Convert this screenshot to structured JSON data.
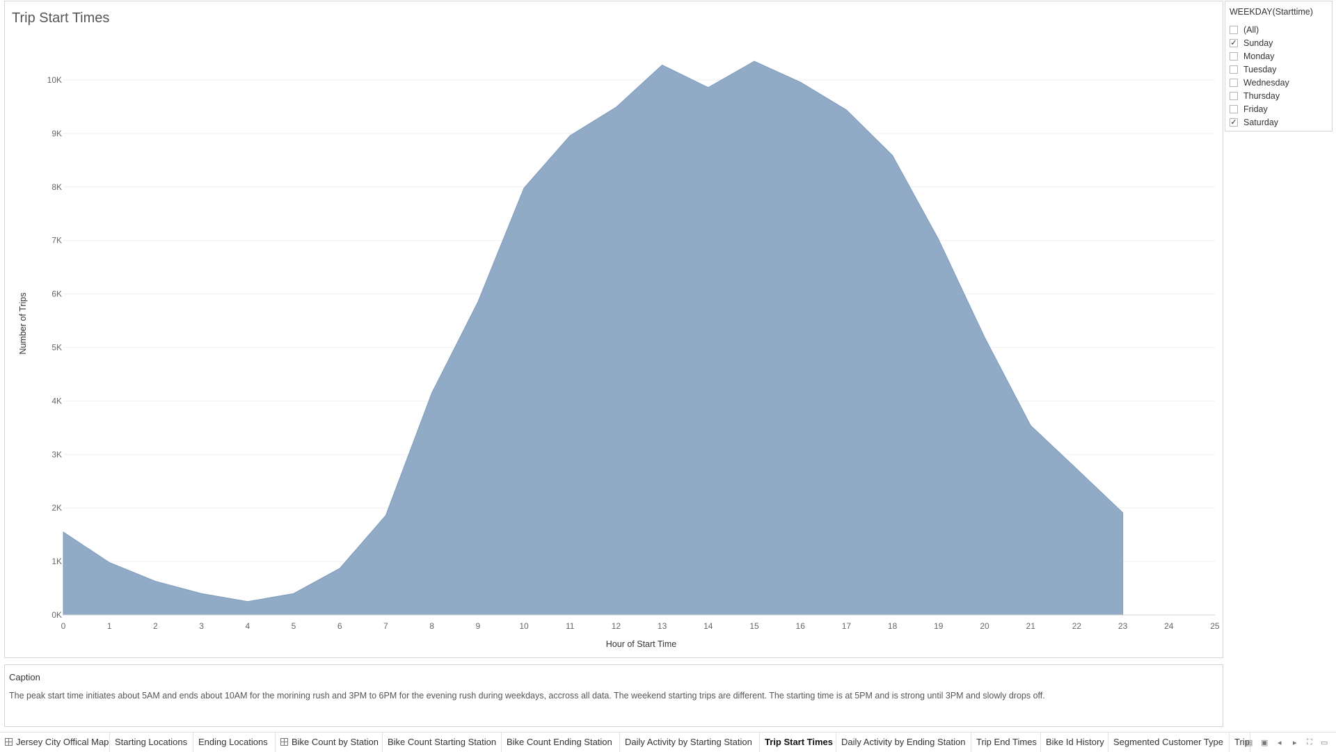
{
  "filter": {
    "title": "WEEKDAY(Starttime)",
    "options": [
      {
        "label": "(All)",
        "checked": false
      },
      {
        "label": "Sunday",
        "checked": true
      },
      {
        "label": "Monday",
        "checked": false
      },
      {
        "label": "Tuesday",
        "checked": false
      },
      {
        "label": "Wednesday",
        "checked": false
      },
      {
        "label": "Thursday",
        "checked": false
      },
      {
        "label": "Friday",
        "checked": false
      },
      {
        "label": "Saturday",
        "checked": true
      }
    ]
  },
  "caption": {
    "title": "Caption",
    "text": "The peak start time initiates about 5AM and ends about 10AM for the morining rush and 3PM to 6PM for the evening rush during weekdays, accross all data. The weekend starting trips are different. The starting time is at 5PM and is strong until 3PM and slowly drops off."
  },
  "tabs": [
    {
      "label": "Jersey City Offical Map",
      "icon": "dashboard-icon",
      "active": false
    },
    {
      "label": "Starting Locations",
      "icon": "",
      "active": false
    },
    {
      "label": "Ending Locations",
      "icon": "",
      "active": false
    },
    {
      "label": "Bike Count by Station",
      "icon": "dashboard-icon",
      "active": false
    },
    {
      "label": "Bike Count Starting Station",
      "icon": "",
      "active": false
    },
    {
      "label": "Bike Count Ending Station",
      "icon": "",
      "active": false
    },
    {
      "label": "Daily Activity by Starting Station",
      "icon": "",
      "active": false
    },
    {
      "label": "Trip Start Times",
      "icon": "",
      "active": true
    },
    {
      "label": "Daily Activity by Ending Station",
      "icon": "",
      "active": false
    },
    {
      "label": "Trip End Times",
      "icon": "",
      "active": false
    },
    {
      "label": "Bike Id History",
      "icon": "",
      "active": false
    },
    {
      "label": "Segmented Customer Type",
      "icon": "",
      "active": false
    },
    {
      "label": "Trip",
      "icon": "",
      "active": false
    }
  ],
  "nav_controls": [
    "grid-view-icon",
    "filmstrip-icon",
    "prev-icon",
    "next-icon",
    "fullscreen-icon",
    "present-icon"
  ],
  "chart_data": {
    "type": "area",
    "title": "Trip Start Times",
    "xlabel": "Hour of Start Time",
    "ylabel": "Number of Trips",
    "x": [
      0,
      1,
      2,
      3,
      4,
      5,
      6,
      7,
      8,
      9,
      10,
      11,
      12,
      13,
      14,
      15,
      16,
      17,
      18,
      19,
      20,
      21,
      22,
      23
    ],
    "y": [
      1550,
      980,
      630,
      400,
      250,
      400,
      870,
      1860,
      4150,
      5850,
      7980,
      8960,
      9490,
      10280,
      9860,
      10350,
      9960,
      9440,
      8590,
      7020,
      5190,
      3540,
      2730,
      1910
    ],
    "xlim": [
      0,
      25
    ],
    "ylim": [
      0,
      10000
    ],
    "xticks": [
      "0",
      "1",
      "2",
      "3",
      "4",
      "5",
      "6",
      "7",
      "8",
      "9",
      "10",
      "11",
      "12",
      "13",
      "14",
      "15",
      "16",
      "17",
      "18",
      "19",
      "20",
      "21",
      "22",
      "23",
      "24",
      "25"
    ],
    "yticks": [
      {
        "value": 0,
        "label": "0K"
      },
      {
        "value": 1000,
        "label": "1K"
      },
      {
        "value": 2000,
        "label": "2K"
      },
      {
        "value": 3000,
        "label": "3K"
      },
      {
        "value": 4000,
        "label": "4K"
      },
      {
        "value": 5000,
        "label": "5K"
      },
      {
        "value": 6000,
        "label": "6K"
      },
      {
        "value": 7000,
        "label": "7K"
      },
      {
        "value": 8000,
        "label": "8K"
      },
      {
        "value": 9000,
        "label": "9K"
      },
      {
        "value": 10000,
        "label": "10K"
      }
    ],
    "grid": true,
    "color": "#8ba7c4"
  }
}
